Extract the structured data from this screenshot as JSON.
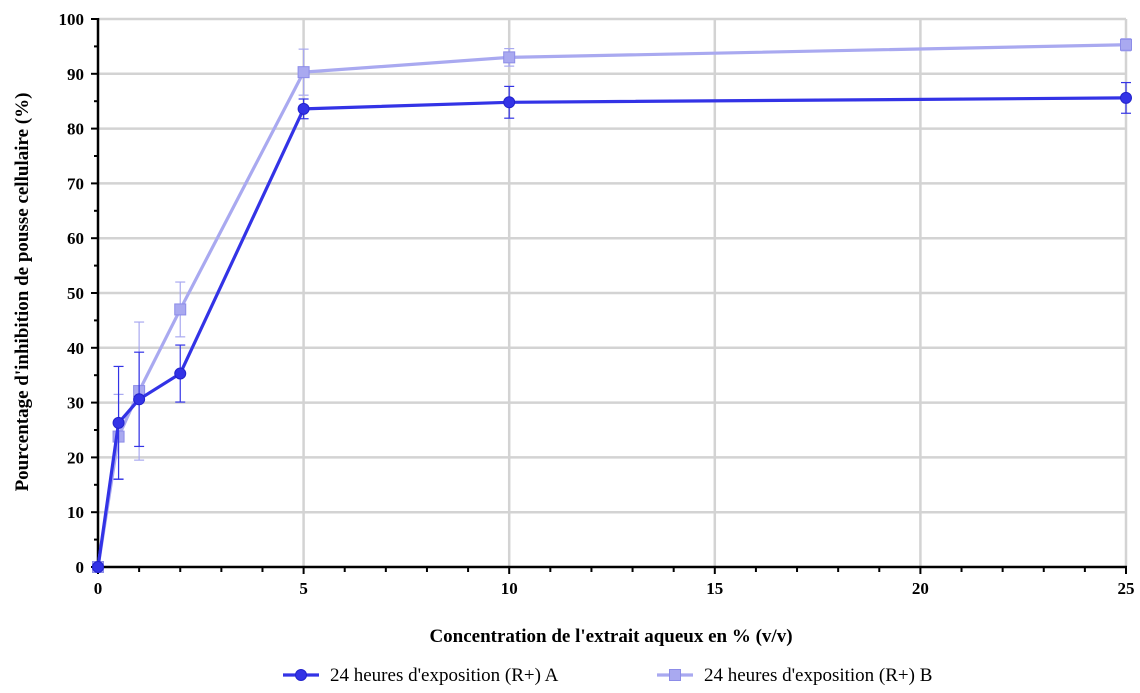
{
  "chart_data": {
    "type": "line",
    "title": "",
    "xlabel": "Concentration de l'extrait aqueux en % (v/v)",
    "ylabel": "Pourcentage d'inhibition de pousse cellulaire (%)",
    "xlim": [
      0,
      25
    ],
    "ylim": [
      0,
      100
    ],
    "x_ticks": [
      "0",
      "5",
      "10",
      "15",
      "20",
      "25"
    ],
    "y_ticks": [
      "0",
      "10",
      "20",
      "30",
      "40",
      "50",
      "60",
      "70",
      "80",
      "90",
      "100"
    ],
    "grid": true,
    "legend_position": "bottom",
    "series": [
      {
        "name": "24 heures d'exposition (R+) A",
        "color": "#3333e6",
        "marker": "circle",
        "x": [
          0,
          0.5,
          1,
          2,
          5,
          10,
          25
        ],
        "y": [
          0,
          26.3,
          30.6,
          35.3,
          83.6,
          84.8,
          85.6
        ],
        "err": [
          0,
          10.3,
          8.6,
          5.2,
          1.8,
          2.9,
          2.8
        ]
      },
      {
        "name": "24 heures d'exposition (R+) B",
        "color": "#a9a9f0",
        "marker": "square",
        "x": [
          0,
          0.5,
          1,
          2,
          5,
          10,
          25
        ],
        "y": [
          0,
          23.8,
          32.1,
          47.0,
          90.3,
          93.0,
          95.3
        ],
        "err": [
          0,
          7.7,
          12.6,
          5.0,
          4.2,
          1.6,
          1.1
        ]
      }
    ]
  }
}
